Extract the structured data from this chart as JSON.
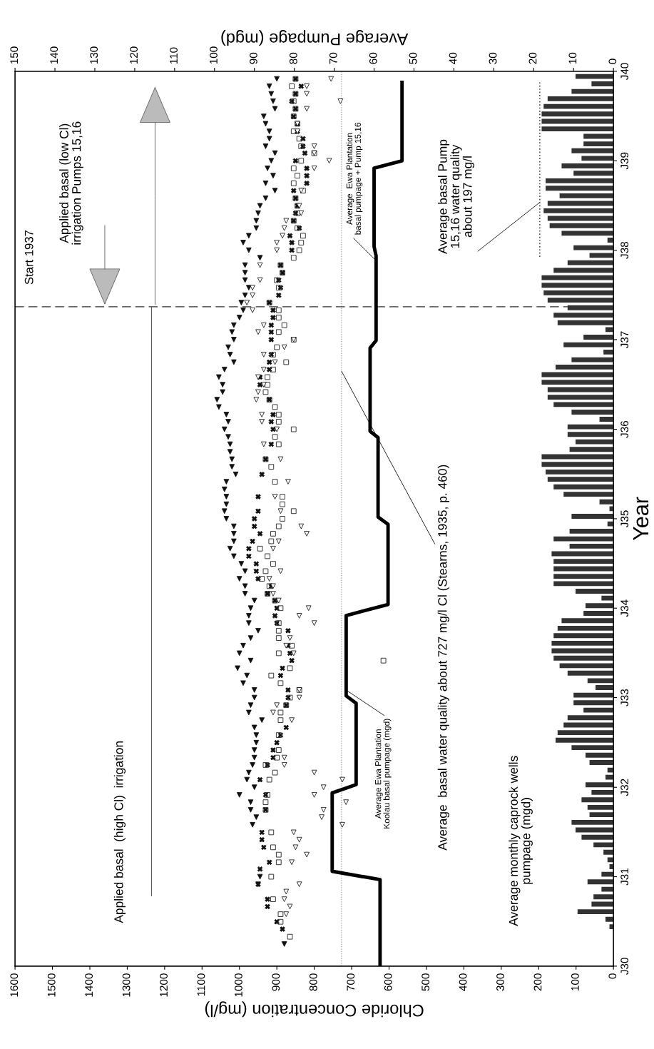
{
  "chart_data": {
    "type": "scatter",
    "orientation": "horizontal",
    "xlabel": "Chloride Concentration (mg/l)",
    "x2label": "Average Pumpage (mgd)",
    "ylabel": "Year",
    "xlim": [
      1600,
      0
    ],
    "xticks": [
      0,
      100,
      200,
      300,
      400,
      500,
      600,
      700,
      800,
      900,
      1000,
      1100,
      1200,
      1300,
      1400,
      1500,
      1600
    ],
    "x2lim": [
      150,
      0
    ],
    "x2ticks": [
      0,
      10,
      20,
      30,
      40,
      50,
      60,
      70,
      80,
      90,
      100,
      110,
      120,
      130,
      140,
      150
    ],
    "ylim": [
      "1930-01-01",
      "1940-01-01"
    ],
    "yticks": [
      {
        "value": "1930-01-01",
        "label": "J30"
      },
      {
        "value": "1931-01-01",
        "label": "J31"
      },
      {
        "value": "1932-01-01",
        "label": "J32"
      },
      {
        "value": "1933-01-01",
        "label": "J33"
      },
      {
        "value": "1934-01-01",
        "label": "J34"
      },
      {
        "value": "1935-01-01",
        "label": "J35"
      },
      {
        "value": "1936-01-01",
        "label": "J36"
      },
      {
        "value": "1937-01-01",
        "label": "J37"
      },
      {
        "value": "1938-01-01",
        "label": "J38"
      },
      {
        "value": "1939-01-01",
        "label": "J39"
      },
      {
        "value": "1940-01-01",
        "label": "J40"
      }
    ],
    "x": [
      "1930-01",
      "1930-02",
      "1930-03",
      "1930-04",
      "1930-05",
      "1930-06",
      "1930-07",
      "1930-08",
      "1930-09",
      "1930-10",
      "1930-11",
      "1930-12",
      "1931-01",
      "1931-02",
      "1931-03",
      "1931-04",
      "1931-05",
      "1931-06",
      "1931-07",
      "1931-08",
      "1931-09",
      "1931-10",
      "1931-11",
      "1931-12",
      "1932-01",
      "1932-02",
      "1932-03",
      "1932-04",
      "1932-05",
      "1932-06",
      "1932-07",
      "1932-08",
      "1932-09",
      "1932-10",
      "1932-11",
      "1932-12",
      "1933-01",
      "1933-02",
      "1933-03",
      "1933-04",
      "1933-05",
      "1933-06",
      "1933-07",
      "1933-08",
      "1933-09",
      "1933-10",
      "1933-11",
      "1933-12",
      "1934-01",
      "1934-02",
      "1934-03",
      "1934-04",
      "1934-05",
      "1934-06",
      "1934-07",
      "1934-08",
      "1934-09",
      "1934-10",
      "1934-11",
      "1934-12",
      "1935-01",
      "1935-02",
      "1935-03",
      "1935-04",
      "1935-05",
      "1935-06",
      "1935-07",
      "1935-08",
      "1935-09",
      "1935-10",
      "1935-11",
      "1935-12",
      "1936-01",
      "1936-02",
      "1936-03",
      "1936-04",
      "1936-05",
      "1936-06",
      "1936-07",
      "1936-08",
      "1936-09",
      "1936-10",
      "1936-11",
      "1936-12",
      "1937-01",
      "1937-02",
      "1937-03",
      "1937-04",
      "1937-05",
      "1937-06",
      "1937-07",
      "1937-08",
      "1937-09",
      "1937-10",
      "1937-11",
      "1937-12",
      "1938-01",
      "1938-02",
      "1938-03",
      "1938-04",
      "1938-05",
      "1938-06",
      "1938-07",
      "1938-08",
      "1938-09",
      "1938-10",
      "1938-11",
      "1938-12",
      "1939-01",
      "1939-02",
      "1939-03",
      "1939-04",
      "1939-05",
      "1939-06",
      "1939-07",
      "1939-08",
      "1939-09",
      "1939-10",
      "1939-11",
      "1939-12"
    ],
    "ref_lines": [
      {
        "axis": "x",
        "value": 727,
        "line_style": "dotted",
        "color": "#999999"
      },
      {
        "axis": "y",
        "value": "1937-05-15",
        "label": "Start 1937",
        "line_style": "dashed",
        "color": "#333333"
      }
    ],
    "annotations": [
      "Applied basal  (high Cl)  irrigation",
      "Applied basal (low Cl)\nirrigation Pumps 15,16",
      {
        "text": "Average  Ewa Plantation\nbasal pumpage + Pump 15,16",
        "x": 635,
        "y": "1937-11-20"
      },
      {
        "text": "Average Ewa Plantation\nKoolau basal pumpage (mgd)",
        "x": 715,
        "y": "1933-02-01"
      },
      {
        "text": "Average  basal water quality about 727 mg/l Cl (Stearns, 1935, p. 460)",
        "x": 727,
        "y": "1936-08-25"
      },
      "Average monthly caprock wells\npumpage (mgd)",
      {
        "text": "Average basal Pump\n15,16 water quality\nabout 197 mg/l",
        "x": 197,
        "y": "1938-07-15"
      }
    ],
    "series": [
      {
        "marker": "triangle",
        "color": "#111111",
        "values": [
          null,
          null,
          null,
          880,
          null,
          null,
          null,
          null,
          null,
          null,
          null,
          950,
          945,
          null,
          null,
          null,
          null,
          null,
          null,
          965,
          955,
          970,
          970,
          1000,
          960,
          980,
          975,
          965,
          960,
          960,
          955,
          955,
          960,
          940,
          975,
          970,
          960,
          960,
          990,
          980,
          1005,
          970,
          1000,
          990,
          970,
          950,
          975,
          975,
          970,
          960,
          985,
          985,
          1000,
          985,
          995,
          1015,
          1025,
          1015,
          1015,
          1015,
          1035,
          1040,
          1035,
          1035,
          1040,
          1035,
          1010,
          1020,
          1020,
          1025,
          1025,
          1030,
          1040,
          1030,
          1035,
          1055,
          1060,
          1045,
          1045,
          1055,
          1040,
          1015,
          1025,
          1030,
          1015,
          1020,
          1015,
          1000,
          990,
          995,
          985,
          975,
          985,
          985,
          985,
          945,
          975,
          990,
          975,
          955,
          955,
          950,
          945,
          930,
          905,
          930,
          910,
          925,
          915,
          905,
          930,
          920,
          920,
          930,
          935,
          905,
          910,
          915,
          920,
          900
        ]
      },
      {
        "marker": "cross",
        "color": "#111111",
        "values": [
          null,
          null,
          null,
          null,
          null,
          885,
          900,
          null,
          925,
          925,
          null,
          950,
          null,
          945,
          920,
          null,
          935,
          940,
          940,
          null,
          null,
          930,
          null,
          930,
          null,
          945,
          null,
          925,
          910,
          910,
          900,
          890,
          875,
          null,
          null,
          875,
          870,
          870,
          null,
          890,
          885,
          860,
          865,
          870,
          null,
          870,
          900,
          905,
          900,
          905,
          925,
          915,
          950,
          955,
          955,
          975,
          975,
          965,
          945,
          960,
          960,
          950,
          null,
          950,
          null,
          null,
          940,
          null,
          930,
          null,
          915,
          null,
          910,
          915,
          910,
          null,
          920,
          null,
          945,
          945,
          920,
          920,
          915,
          null,
          915,
          915,
          915,
          910,
          910,
          920,
          895,
          890,
          895,
          885,
          890,
          null,
          860,
          860,
          865,
          840,
          855,
          850,
          845,
          850,
          855,
          820,
          820,
          820,
          850,
          825,
          830,
          830,
          845,
          845,
          855,
          850,
          860,
          850,
          835,
          850
        ]
      },
      {
        "marker": "square",
        "color": "#333333",
        "values": [
          null,
          null,
          null,
          null,
          865,
          null,
          890,
          890,
          null,
          910,
          null,
          null,
          915,
          null,
          895,
          895,
          910,
          null,
          915,
          null,
          null,
          930,
          930,
          925,
          null,
          920,
          905,
          930,
          900,
          895,
          null,
          895,
          null,
          890,
          890,
          875,
          865,
          840,
          890,
          915,
          865,
          615,
          895,
          860,
          895,
          895,
          895,
          null,
          890,
          905,
          925,
          920,
          940,
          930,
          910,
          925,
          945,
          915,
          910,
          895,
          885,
          855,
          885,
          885,
          null,
          905,
          null,
          915,
          930,
          null,
          895,
          905,
          855,
          895,
          895,
          905,
          920,
          930,
          925,
          925,
          910,
          875,
          910,
          900,
          855,
          895,
          880,
          895,
          895,
          920,
          null,
          895,
          900,
          885,
          890,
          855,
          840,
          835,
          830,
          845,
          855,
          845,
          845,
          850,
          830,
          855,
          845,
          855,
          835,
          800,
          835,
          840,
          855,
          845,
          855,
          850,
          855,
          850,
          860,
          850
        ]
      },
      {
        "marker": "triangle",
        "color": "#ffffff",
        "values": [
          null,
          null,
          null,
          null,
          null,
          null,
          null,
          875,
          865,
          880,
          875,
          840,
          null,
          null,
          860,
          820,
          850,
          840,
          855,
          725,
          780,
          775,
          715,
          800,
          775,
          725,
          800,
          880,
          880,
          null,
          null,
          null,
          null,
          860,
          910,
          900,
          840,
          840,
          null,
          null,
          null,
          null,
          855,
          875,
          865,
          null,
          800,
          840,
          815,
          895,
          910,
          910,
          920,
          890,
          null,
          null,
          910,
          895,
          820,
          835,
          null,
          890,
          null,
          905,
          null,
          870,
          null,
          null,
          890,
          null,
          935,
          null,
          900,
          940,
          940,
          null,
          955,
          950,
          935,
          950,
          935,
          905,
          935,
          880,
          855,
          950,
          935,
          null,
          965,
          980,
          965,
          965,
          945,
          null,
          945,
          null,
          900,
          900,
          885,
          880,
          875,
          835,
          840,
          null,
          835,
          null,
          null,
          800,
          760,
          800,
          800,
          null,
          845,
          845,
          null,
          820,
          730,
          820,
          820,
          755
        ]
      },
      {
        "type": "line",
        "axis": "x2",
        "marker": "none",
        "color": "#000000",
        "x": [
          "1930-01-01",
          "1930-12-20",
          "1931-01-23",
          "1931-12-09",
          "1932-01-12",
          "1932-12-09",
          "1933-01-08",
          "1933-12-02",
          "1934-01-16",
          "1934-12-09",
          "1935-01-08",
          "1935-11-28",
          "1935-12-24",
          "1936-11-28",
          "1936-12-28",
          "1937-12-09",
          "1938-01-16",
          "1938-12-02",
          "1939-01-01",
          "1939-11-17"
        ],
        "values": [
          58.5,
          58.5,
          70.5,
          70.5,
          64.5,
          64.5,
          67,
          67,
          56.5,
          56.5,
          59,
          59,
          61,
          61,
          59.5,
          59.5,
          60,
          60,
          53,
          53
        ]
      },
      {
        "type": "bar",
        "axis": "x2",
        "color": "#333333",
        "values": [
          0,
          0,
          0,
          0,
          0,
          1,
          2,
          9,
          5.5,
          5,
          3,
          6.5,
          3,
          1,
          1.5,
          2.5,
          5,
          8,
          9.5,
          10.5,
          6,
          6.5,
          8,
          5.5,
          7,
          2,
          1.5,
          6,
          7,
          10.5,
          14.5,
          14,
          12.5,
          11.5,
          7.5,
          10,
          10,
          4.5,
          6.5,
          11.5,
          13.5,
          15,
          15.5,
          15.5,
          15,
          14,
          13,
          7.5,
          7,
          3,
          9.5,
          15,
          15,
          15,
          15,
          15.5,
          11,
          15,
          11,
          1.5,
          10.5,
          1,
          3.5,
          12.5,
          15,
          16.5,
          17,
          18,
          18,
          11,
          9.5,
          11.5,
          11.5,
          3.5,
          10.5,
          15,
          16.5,
          16.5,
          18,
          18,
          14.5,
          10.5,
          2.5,
          12.5,
          7.5,
          2,
          14,
          15,
          11.5,
          16.5,
          17.5,
          18,
          18,
          15,
          11.5,
          6,
          10,
          1.5,
          13,
          16,
          16.5,
          17.5,
          16.5,
          13.5,
          17,
          17,
          10,
          13,
          8,
          10.5,
          7.5,
          7.5,
          18,
          18,
          18,
          17.5,
          16.5,
          10.5,
          5.5,
          9.5
        ]
      },
      {
        "type": "line",
        "marker": "none",
        "line_style": "dotted",
        "color": "#555555",
        "x": [
          "1937-12-05",
          "1939-11-17"
        ],
        "values": [
          197,
          197
        ]
      },
      {
        "type": "line",
        "marker": "none",
        "color": "#555555",
        "x": [
          "1930-10-15",
          "1937-05-15"
        ],
        "values": [
          1235,
          1235
        ]
      }
    ]
  }
}
